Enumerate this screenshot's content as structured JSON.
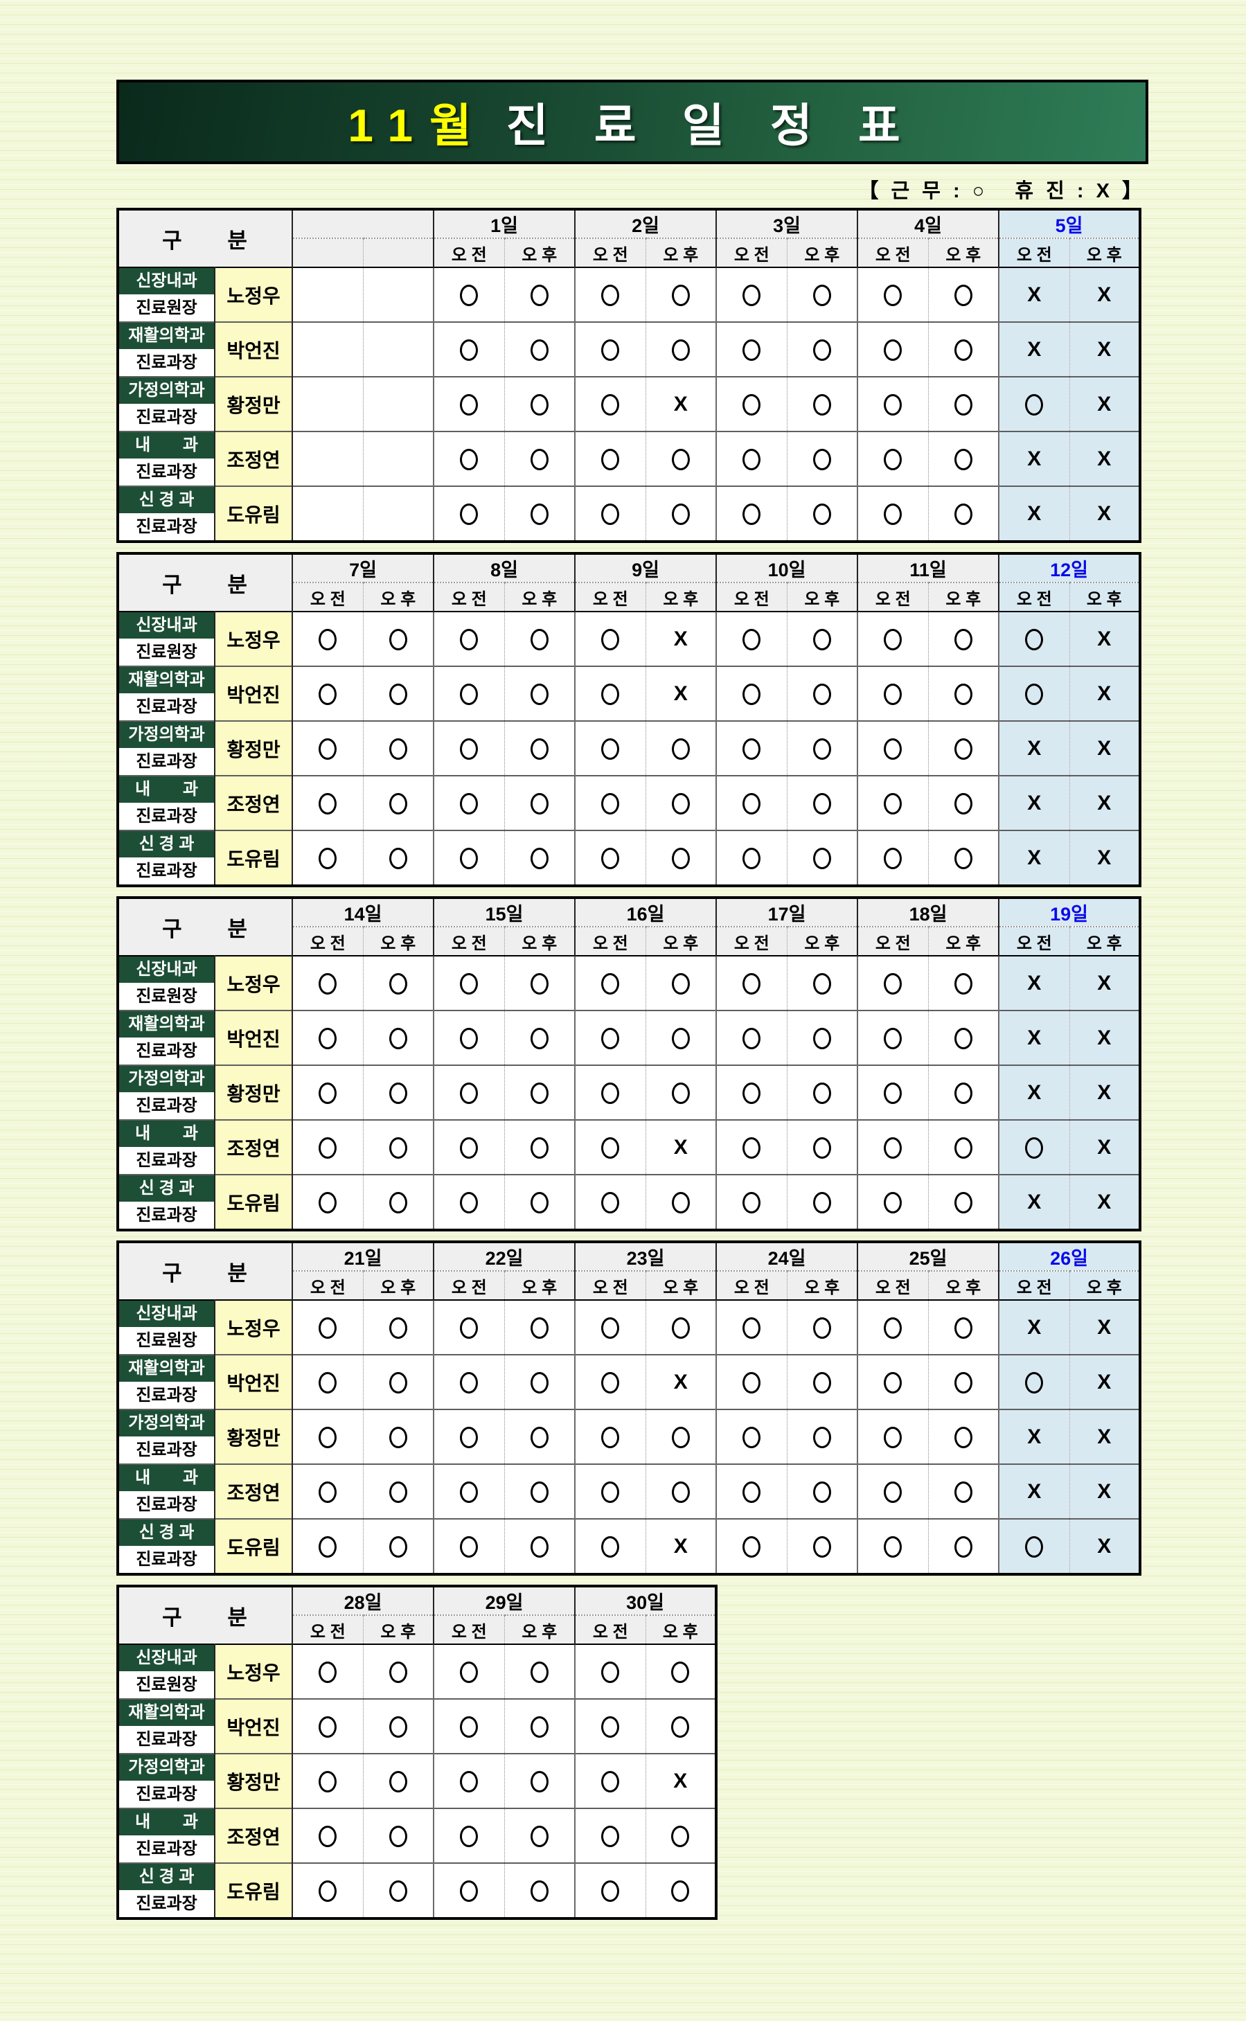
{
  "page": {
    "title_month": "11월",
    "title_rest": "진 료 일 정 표",
    "legend": "【 근 무 : ○   휴 진 : X 】"
  },
  "colors": {
    "banner_green_dark": "#0a2a1c",
    "banner_green_light": "#2f7d58",
    "title_month_yellow": "#ffff00",
    "dept_green": "#1d4f36",
    "name_yellow": "#fcfac5",
    "header_gray": "#efefef",
    "highlight_blue_bg": "#d9e9f2",
    "highlight_day_text": "#0a0ae8",
    "page_bg": "#f2f8d9"
  },
  "table_header": {
    "gubun": "구      분",
    "am": "오 전",
    "pm": "오 후"
  },
  "doctors": [
    {
      "dept_top": "신장내과",
      "dept_bottom": "진료원장",
      "name": "노정우"
    },
    {
      "dept_top": "재활의학과",
      "dept_bottom": "진료과장",
      "name": "박언진"
    },
    {
      "dept_top": "가정의학과",
      "dept_bottom": "진료과장",
      "name": "황정만"
    },
    {
      "dept_top": "내       과",
      "dept_bottom": "진료과장",
      "name": "조정연"
    },
    {
      "dept_top": "신 경 과",
      "dept_bottom": "진료과장",
      "name": "도유림"
    }
  ],
  "weeks": [
    {
      "days": [
        {
          "label": "",
          "highlight": false
        },
        {
          "label": "1일",
          "highlight": false
        },
        {
          "label": "2일",
          "highlight": false
        },
        {
          "label": "3일",
          "highlight": false
        },
        {
          "label": "4일",
          "highlight": false
        },
        {
          "label": "5일",
          "highlight": true
        }
      ],
      "rows": [
        [
          [
            "",
            ""
          ],
          [
            "O",
            "O"
          ],
          [
            "O",
            "O"
          ],
          [
            "O",
            "O"
          ],
          [
            "O",
            "O"
          ],
          [
            "X",
            "X"
          ]
        ],
        [
          [
            "",
            ""
          ],
          [
            "O",
            "O"
          ],
          [
            "O",
            "O"
          ],
          [
            "O",
            "O"
          ],
          [
            "O",
            "O"
          ],
          [
            "X",
            "X"
          ]
        ],
        [
          [
            "",
            ""
          ],
          [
            "O",
            "O"
          ],
          [
            "O",
            "X"
          ],
          [
            "O",
            "O"
          ],
          [
            "O",
            "O"
          ],
          [
            "O",
            "X"
          ]
        ],
        [
          [
            "",
            ""
          ],
          [
            "O",
            "O"
          ],
          [
            "O",
            "O"
          ],
          [
            "O",
            "O"
          ],
          [
            "O",
            "O"
          ],
          [
            "X",
            "X"
          ]
        ],
        [
          [
            "",
            ""
          ],
          [
            "O",
            "O"
          ],
          [
            "O",
            "O"
          ],
          [
            "O",
            "O"
          ],
          [
            "O",
            "O"
          ],
          [
            "X",
            "X"
          ]
        ]
      ]
    },
    {
      "days": [
        {
          "label": "7일",
          "highlight": false
        },
        {
          "label": "8일",
          "highlight": false
        },
        {
          "label": "9일",
          "highlight": false
        },
        {
          "label": "10일",
          "highlight": false
        },
        {
          "label": "11일",
          "highlight": false
        },
        {
          "label": "12일",
          "highlight": true
        }
      ],
      "rows": [
        [
          [
            "O",
            "O"
          ],
          [
            "O",
            "O"
          ],
          [
            "O",
            "X"
          ],
          [
            "O",
            "O"
          ],
          [
            "O",
            "O"
          ],
          [
            "O",
            "X"
          ]
        ],
        [
          [
            "O",
            "O"
          ],
          [
            "O",
            "O"
          ],
          [
            "O",
            "X"
          ],
          [
            "O",
            "O"
          ],
          [
            "O",
            "O"
          ],
          [
            "O",
            "X"
          ]
        ],
        [
          [
            "O",
            "O"
          ],
          [
            "O",
            "O"
          ],
          [
            "O",
            "O"
          ],
          [
            "O",
            "O"
          ],
          [
            "O",
            "O"
          ],
          [
            "X",
            "X"
          ]
        ],
        [
          [
            "O",
            "O"
          ],
          [
            "O",
            "O"
          ],
          [
            "O",
            "O"
          ],
          [
            "O",
            "O"
          ],
          [
            "O",
            "O"
          ],
          [
            "X",
            "X"
          ]
        ],
        [
          [
            "O",
            "O"
          ],
          [
            "O",
            "O"
          ],
          [
            "O",
            "O"
          ],
          [
            "O",
            "O"
          ],
          [
            "O",
            "O"
          ],
          [
            "X",
            "X"
          ]
        ]
      ]
    },
    {
      "days": [
        {
          "label": "14일",
          "highlight": false
        },
        {
          "label": "15일",
          "highlight": false
        },
        {
          "label": "16일",
          "highlight": false
        },
        {
          "label": "17일",
          "highlight": false
        },
        {
          "label": "18일",
          "highlight": false
        },
        {
          "label": "19일",
          "highlight": true
        }
      ],
      "rows": [
        [
          [
            "O",
            "O"
          ],
          [
            "O",
            "O"
          ],
          [
            "O",
            "O"
          ],
          [
            "O",
            "O"
          ],
          [
            "O",
            "O"
          ],
          [
            "X",
            "X"
          ]
        ],
        [
          [
            "O",
            "O"
          ],
          [
            "O",
            "O"
          ],
          [
            "O",
            "O"
          ],
          [
            "O",
            "O"
          ],
          [
            "O",
            "O"
          ],
          [
            "X",
            "X"
          ]
        ],
        [
          [
            "O",
            "O"
          ],
          [
            "O",
            "O"
          ],
          [
            "O",
            "O"
          ],
          [
            "O",
            "O"
          ],
          [
            "O",
            "O"
          ],
          [
            "X",
            "X"
          ]
        ],
        [
          [
            "O",
            "O"
          ],
          [
            "O",
            "O"
          ],
          [
            "O",
            "X"
          ],
          [
            "O",
            "O"
          ],
          [
            "O",
            "O"
          ],
          [
            "O",
            "X"
          ]
        ],
        [
          [
            "O",
            "O"
          ],
          [
            "O",
            "O"
          ],
          [
            "O",
            "O"
          ],
          [
            "O",
            "O"
          ],
          [
            "O",
            "O"
          ],
          [
            "X",
            "X"
          ]
        ]
      ]
    },
    {
      "days": [
        {
          "label": "21일",
          "highlight": false
        },
        {
          "label": "22일",
          "highlight": false
        },
        {
          "label": "23일",
          "highlight": false
        },
        {
          "label": "24일",
          "highlight": false
        },
        {
          "label": "25일",
          "highlight": false
        },
        {
          "label": "26일",
          "highlight": true
        }
      ],
      "rows": [
        [
          [
            "O",
            "O"
          ],
          [
            "O",
            "O"
          ],
          [
            "O",
            "O"
          ],
          [
            "O",
            "O"
          ],
          [
            "O",
            "O"
          ],
          [
            "X",
            "X"
          ]
        ],
        [
          [
            "O",
            "O"
          ],
          [
            "O",
            "O"
          ],
          [
            "O",
            "X"
          ],
          [
            "O",
            "O"
          ],
          [
            "O",
            "O"
          ],
          [
            "O",
            "X"
          ]
        ],
        [
          [
            "O",
            "O"
          ],
          [
            "O",
            "O"
          ],
          [
            "O",
            "O"
          ],
          [
            "O",
            "O"
          ],
          [
            "O",
            "O"
          ],
          [
            "X",
            "X"
          ]
        ],
        [
          [
            "O",
            "O"
          ],
          [
            "O",
            "O"
          ],
          [
            "O",
            "O"
          ],
          [
            "O",
            "O"
          ],
          [
            "O",
            "O"
          ],
          [
            "X",
            "X"
          ]
        ],
        [
          [
            "O",
            "O"
          ],
          [
            "O",
            "O"
          ],
          [
            "O",
            "X"
          ],
          [
            "O",
            "O"
          ],
          [
            "O",
            "O"
          ],
          [
            "O",
            "X"
          ]
        ]
      ]
    },
    {
      "days": [
        {
          "label": "28일",
          "highlight": false
        },
        {
          "label": "29일",
          "highlight": false
        },
        {
          "label": "30일",
          "highlight": false
        }
      ],
      "rows": [
        [
          [
            "O",
            "O"
          ],
          [
            "O",
            "O"
          ],
          [
            "O",
            "O"
          ]
        ],
        [
          [
            "O",
            "O"
          ],
          [
            "O",
            "O"
          ],
          [
            "O",
            "O"
          ]
        ],
        [
          [
            "O",
            "O"
          ],
          [
            "O",
            "O"
          ],
          [
            "O",
            "X"
          ]
        ],
        [
          [
            "O",
            "O"
          ],
          [
            "O",
            "O"
          ],
          [
            "O",
            "O"
          ]
        ],
        [
          [
            "O",
            "O"
          ],
          [
            "O",
            "O"
          ],
          [
            "O",
            "O"
          ]
        ]
      ]
    }
  ]
}
